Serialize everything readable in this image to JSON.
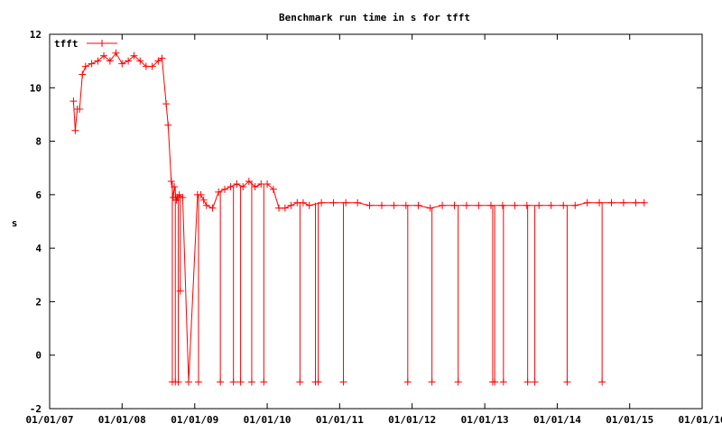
{
  "chart_data": {
    "type": "line",
    "title": "Benchmark run time in s for tfft",
    "xlabel": "",
    "ylabel": "s",
    "x_ticks": [
      "01/01/07",
      "01/01/08",
      "01/01/09",
      "01/01/10",
      "01/01/11",
      "01/01/12",
      "01/01/13",
      "01/01/14",
      "01/01/15",
      "01/01/16"
    ],
    "xlim": [
      "2007-01-01",
      "2016-01-01"
    ],
    "y_ticks": [
      -2,
      0,
      2,
      4,
      6,
      8,
      10,
      12
    ],
    "ylim": [
      -2,
      12
    ],
    "grid": false,
    "legend_position": "top-left",
    "color": "#ff0000",
    "series": [
      {
        "name": "tfft",
        "x": [
          "2007-05-01",
          "2007-05-10",
          "2007-05-20",
          "2007-06-01",
          "2007-06-15",
          "2007-07-01",
          "2007-08-01",
          "2007-09-01",
          "2007-10-01",
          "2007-11-01",
          "2007-12-01",
          "2008-01-01",
          "2008-02-01",
          "2008-03-01",
          "2008-04-01",
          "2008-05-01",
          "2008-06-01",
          "2008-07-01",
          "2008-07-20",
          "2008-08-10",
          "2008-08-20",
          "2008-09-05",
          "2008-09-15",
          "2008-09-20",
          "2008-10-01",
          "2008-10-05",
          "2008-10-15",
          "2008-11-01",
          "2008-12-01",
          "2009-01-15",
          "2009-02-01",
          "2009-02-15",
          "2009-03-01",
          "2009-04-01",
          "2009-05-01",
          "2009-06-01",
          "2009-07-01",
          "2009-08-01",
          "2009-09-01",
          "2009-10-01",
          "2009-11-01",
          "2009-12-01",
          "2010-01-01",
          "2010-02-01",
          "2010-03-01",
          "2010-04-01",
          "2010-05-01",
          "2010-06-01",
          "2010-07-01",
          "2010-08-01",
          "2010-10-01",
          "2010-12-01",
          "2011-02-01",
          "2011-04-01",
          "2011-06-01",
          "2011-08-01",
          "2011-10-01",
          "2011-12-01",
          "2012-02-01",
          "2012-04-01",
          "2012-06-01",
          "2012-08-01",
          "2012-10-01",
          "2012-12-01",
          "2013-02-01",
          "2013-04-01",
          "2013-06-01",
          "2013-08-01",
          "2013-10-01",
          "2013-12-01",
          "2014-02-01",
          "2014-04-01",
          "2014-06-01",
          "2014-08-01",
          "2014-10-01",
          "2014-12-01",
          "2015-02-01",
          "2015-03-15"
        ],
        "y": [
          9.5,
          8.4,
          9.2,
          9.2,
          10.5,
          10.8,
          10.9,
          11.0,
          11.2,
          11.0,
          11.3,
          10.9,
          11.0,
          11.2,
          11.0,
          10.8,
          10.8,
          11.0,
          11.1,
          9.4,
          8.6,
          6.5,
          5.9,
          6.3,
          5.8,
          5.9,
          6.0,
          5.9,
          -1.0,
          6.0,
          6.0,
          5.8,
          5.6,
          5.5,
          6.1,
          6.2,
          6.3,
          6.4,
          6.3,
          6.5,
          6.3,
          6.4,
          6.4,
          6.2,
          5.5,
          5.5,
          5.6,
          5.7,
          5.7,
          5.6,
          5.7,
          5.7,
          5.7,
          5.7,
          5.6,
          5.6,
          5.6,
          5.6,
          5.6,
          5.5,
          5.6,
          5.6,
          5.6,
          5.6,
          5.6,
          5.6,
          5.6,
          5.6,
          5.6,
          5.6,
          5.6,
          5.6,
          5.7,
          5.7,
          5.7,
          5.7,
          5.7,
          5.7
        ]
      },
      {
        "name": "",
        "kind": "drops",
        "x": [
          "2008-09-10",
          "2008-09-25",
          "2008-10-10",
          "2008-10-20",
          "2009-01-20",
          "2009-05-10",
          "2009-07-15",
          "2009-08-20",
          "2009-10-15",
          "2009-12-15",
          "2010-06-15",
          "2010-09-01",
          "2010-09-15",
          "2011-01-20",
          "2011-12-10",
          "2012-04-10",
          "2012-08-20",
          "2013-02-10",
          "2013-02-20",
          "2013-04-05",
          "2013-08-05",
          "2013-09-10",
          "2014-02-20",
          "2014-08-15"
        ],
        "y": [
          -1,
          -1,
          -1,
          2.4,
          -1,
          -1,
          -1,
          -1,
          -1,
          -1,
          -1,
          -1,
          -1,
          -1,
          -1,
          -1,
          -1,
          -1,
          -1,
          -1,
          -1,
          -1,
          -1,
          -1
        ]
      }
    ]
  }
}
